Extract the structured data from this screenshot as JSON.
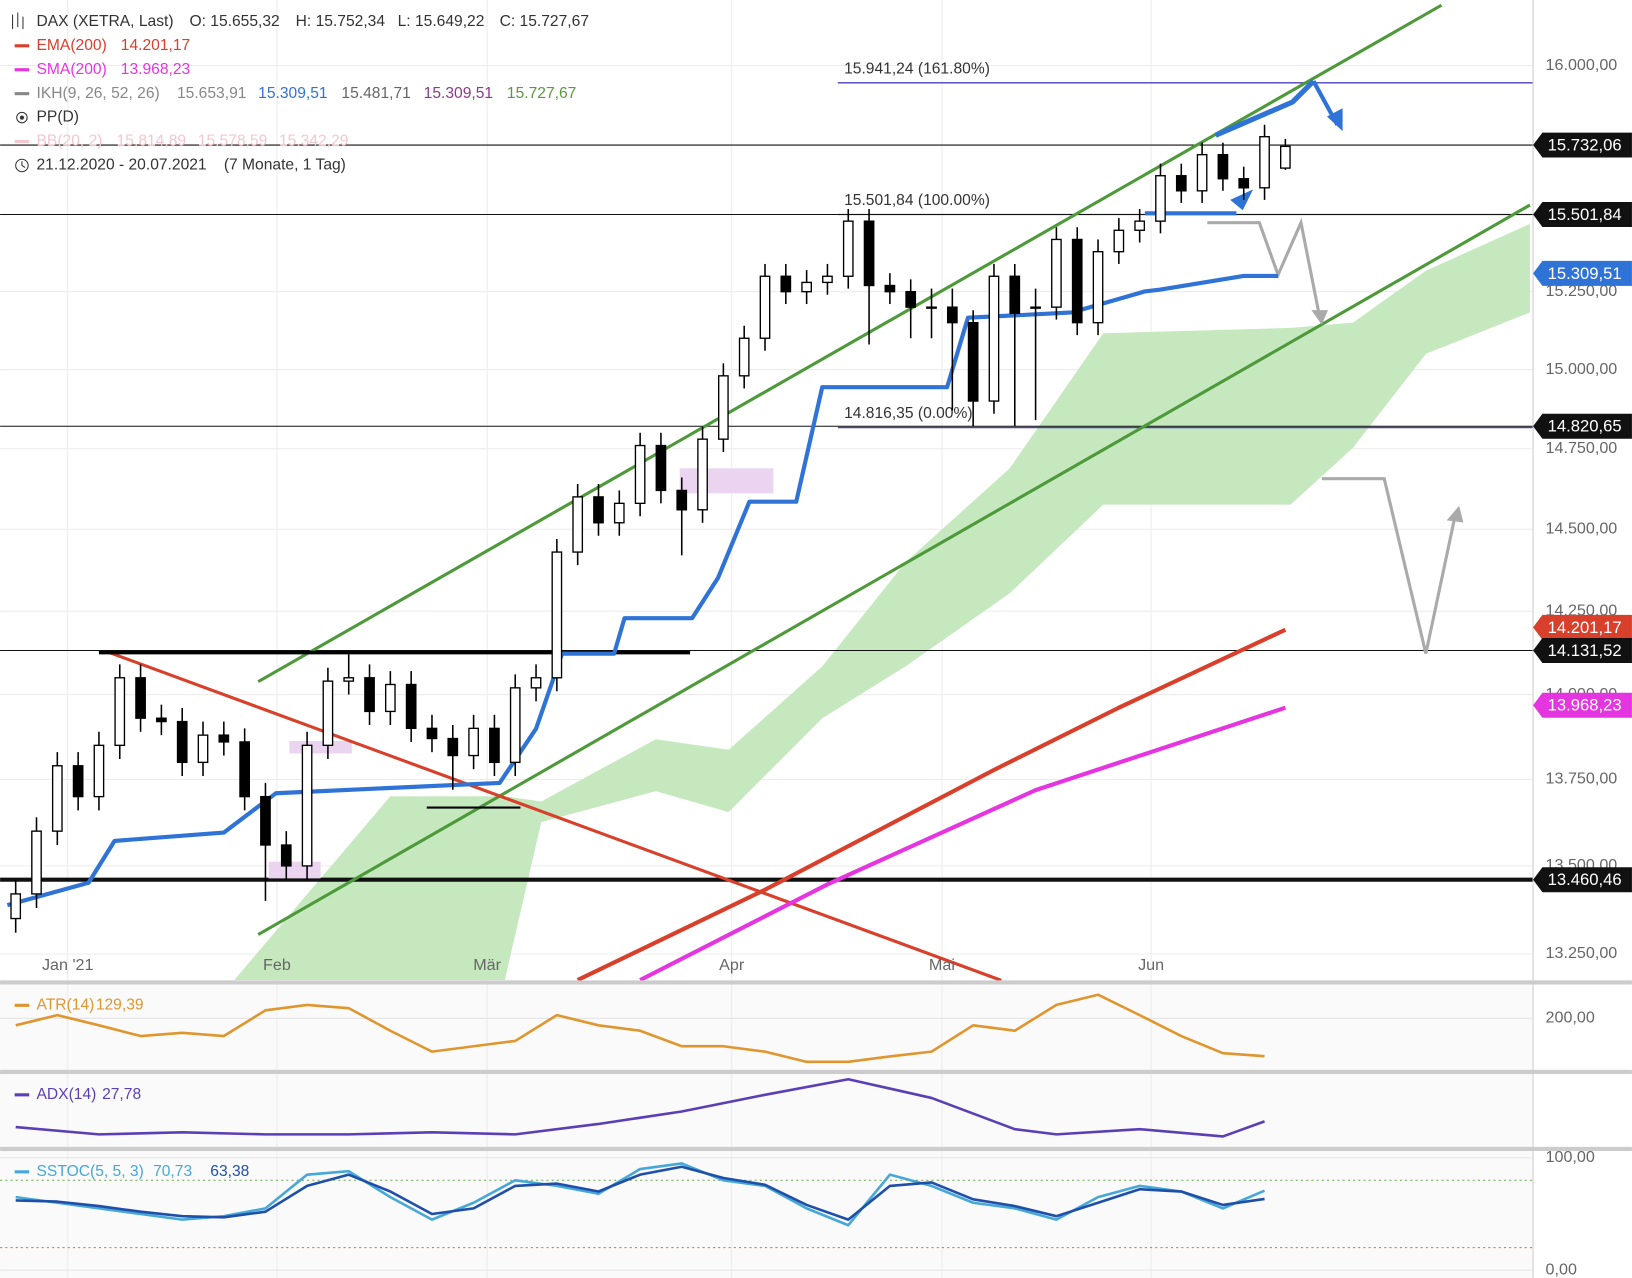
{
  "chart_data": {
    "type": "candlestick",
    "title": "DAX (XETRA, Last)",
    "ohlc_labels": [
      "O: 15.655,32",
      "H: 15.752,34",
      "L: 15.649,22",
      "C: 15.727,67"
    ],
    "log": true,
    "grid": true,
    "xlim": [
      -0.75,
      72.9
    ],
    "ylim": [
      13176,
      16224
    ],
    "xticks": [
      {
        "value": 2.5,
        "label": "Jan '21"
      },
      {
        "value": 12.55,
        "label": "Feb"
      },
      {
        "value": 22.65,
        "label": "Mär"
      },
      {
        "value": 34.4,
        "label": "Apr"
      },
      {
        "value": 44.5,
        "label": "Mai"
      },
      {
        "value": 54.55,
        "label": "Jun"
      }
    ],
    "yticks": [
      {
        "value": 13250,
        "label": "13.250,00"
      },
      {
        "value": 13500,
        "label": "13.500,00"
      },
      {
        "value": 13750,
        "label": "13.750,00"
      },
      {
        "value": 14000,
        "label": "14.000,00"
      },
      {
        "value": 14250,
        "label": "14.250,00"
      },
      {
        "value": 14500,
        "label": "14.500,00"
      },
      {
        "value": 14750,
        "label": "14.750,00"
      },
      {
        "value": 15000,
        "label": "15.000,00"
      },
      {
        "value": 15250,
        "label": "15.250,00"
      },
      {
        "value": 16000,
        "label": "16.000,00"
      }
    ],
    "candles": [
      [
        13350,
        13460,
        13310,
        13420
      ],
      [
        13420,
        13640,
        13380,
        13600
      ],
      [
        13600,
        13830,
        13560,
        13790
      ],
      [
        13790,
        13830,
        13660,
        13700
      ],
      [
        13700,
        13890,
        13660,
        13850
      ],
      [
        13850,
        14090,
        13810,
        14050
      ],
      [
        14050,
        14090,
        13890,
        13930
      ],
      [
        13930,
        13970,
        13880,
        13920
      ],
      [
        13920,
        13960,
        13760,
        13800
      ],
      [
        13800,
        13920,
        13760,
        13880
      ],
      [
        13880,
        13920,
        13820,
        13860
      ],
      [
        13860,
        13900,
        13660,
        13700
      ],
      [
        13700,
        13740,
        13400,
        13560
      ],
      [
        13560,
        13600,
        13460,
        13500
      ],
      [
        13500,
        13890,
        13460,
        13850
      ],
      [
        13850,
        14080,
        13810,
        14040
      ],
      [
        14040,
        14120,
        14000,
        14050
      ],
      [
        14050,
        14090,
        13910,
        13950
      ],
      [
        13950,
        14070,
        13910,
        14030
      ],
      [
        14030,
        14070,
        13860,
        13900
      ],
      [
        13900,
        13940,
        13830,
        13870
      ],
      [
        13870,
        13910,
        13720,
        13820
      ],
      [
        13820,
        13940,
        13780,
        13900
      ],
      [
        13900,
        13940,
        13760,
        13800
      ],
      [
        13800,
        14060,
        13760,
        14020
      ],
      [
        14020,
        14090,
        13980,
        14050
      ],
      [
        14050,
        14470,
        14010,
        14430
      ],
      [
        14430,
        14640,
        14390,
        14600
      ],
      [
        14600,
        14640,
        14480,
        14520
      ],
      [
        14520,
        14620,
        14480,
        14580
      ],
      [
        14580,
        14800,
        14540,
        14760
      ],
      [
        14760,
        14800,
        14580,
        14620
      ],
      [
        14620,
        14660,
        14420,
        14560
      ],
      [
        14560,
        14820,
        14520,
        14780
      ],
      [
        14780,
        15020,
        14740,
        14980
      ],
      [
        14980,
        15140,
        14940,
        15100
      ],
      [
        15100,
        15340,
        15060,
        15300
      ],
      [
        15300,
        15340,
        15210,
        15250
      ],
      [
        15250,
        15320,
        15210,
        15280
      ],
      [
        15280,
        15340,
        15240,
        15300
      ],
      [
        15300,
        15520,
        15260,
        15480
      ],
      [
        15480,
        15520,
        15080,
        15270
      ],
      [
        15270,
        15310,
        15210,
        15250
      ],
      [
        15250,
        15290,
        15100,
        15200
      ],
      [
        15200,
        15260,
        15100,
        15200
      ],
      [
        15200,
        15260,
        14870,
        15150
      ],
      [
        15150,
        15190,
        14820,
        14900
      ],
      [
        14900,
        15340,
        14860,
        15300
      ],
      [
        15300,
        15340,
        14820,
        15180
      ],
      [
        15200,
        15260,
        14840,
        15200
      ],
      [
        15200,
        15460,
        15160,
        15420
      ],
      [
        15420,
        15460,
        15110,
        15150
      ],
      [
        15150,
        15420,
        15110,
        15380
      ],
      [
        15380,
        15490,
        15340,
        15450
      ],
      [
        15450,
        15520,
        15410,
        15480
      ],
      [
        15480,
        15670,
        15440,
        15630
      ],
      [
        15630,
        15670,
        15540,
        15580
      ],
      [
        15580,
        15740,
        15540,
        15700
      ],
      [
        15700,
        15740,
        15580,
        15620
      ],
      [
        15620,
        15660,
        15550,
        15590
      ],
      [
        15590,
        15800,
        15550,
        15760
      ],
      [
        15655.32,
        15752.34,
        15649.22,
        15727.67
      ]
    ],
    "series": [
      {
        "name": "EMA(200)",
        "legend_value": "14.201,17",
        "color": "#d9402b",
        "x": [
          27,
          36,
          47,
          53,
          61
        ],
        "values": [
          13177,
          13432,
          13778,
          13961,
          14194
        ]
      },
      {
        "name": "SMA(200)",
        "legend_value": "13.968,23",
        "color": "#e535e0",
        "x": [
          30,
          39,
          49,
          61
        ],
        "values": [
          13177,
          13447,
          13719,
          13961
        ]
      },
      {
        "name": "IKH(9, 26, 52, 26)",
        "legend_values": [
          "15.653,91",
          "15.309,51",
          "15.481,71",
          "15.309,51",
          "15.727,67"
        ],
        "color": "#2f73d6",
        "x": [
          -0.4,
          3.5,
          4.75,
          10,
          12.5,
          23.25,
          25,
          26.25,
          28.75,
          29.25,
          32.5,
          33.75,
          35.25,
          37.5,
          38.75,
          44.75,
          45.75,
          50.75,
          54.25,
          55,
          59,
          60.65
        ],
        "values": [
          13388,
          13452,
          13572,
          13596,
          13710,
          13740,
          13899,
          14122,
          14122,
          14229,
          14229,
          14352,
          14585,
          14585,
          14944,
          14944,
          15166,
          15183,
          15251,
          15257,
          15301,
          15301
        ],
        "cloud": {
          "color": "#c6e8bf",
          "x": [
            10.5,
            18,
            23.5,
            25.25,
            30.75,
            34.25,
            38.75,
            42.75,
            47.75,
            52.25,
            61.25,
            64.25,
            67.75,
            72.75
          ],
          "upper": [
            13177,
            13701,
            13701,
            13686,
            13868,
            13837,
            14084,
            14399,
            14688,
            15116,
            15133,
            15150,
            15318,
            15471
          ],
          "lower": [
            13177,
            13177,
            13177,
            13626,
            13716,
            13655,
            13930,
            14084,
            14304,
            14576,
            14576,
            14753,
            15050,
            15183
          ]
        }
      }
    ],
    "pp": "PP(D)",
    "bb": {
      "name": "BB(20, 2)",
      "legend_values": [
        "15.814,89",
        "15.578,59",
        "15.342,29"
      ]
    },
    "range": "21.12.2020 - 20.07.2021",
    "range_note": "(7 Monate, 1 Tag)",
    "fib": [
      {
        "value": 15941.24,
        "label": "15.941,24 (161.80%)"
      },
      {
        "value": 15501.84,
        "label": "15.501,84 (100.00%)"
      },
      {
        "value": 14816.35,
        "label": "14.816,35 (0.00%)"
      }
    ],
    "fib_color": "#4b3fbf",
    "price_tags": [
      {
        "value": 15732.06,
        "label": "15.732,06",
        "color": "#111111",
        "line_width": 1
      },
      {
        "value": 15501.84,
        "label": "15.501,84",
        "color": "#111111",
        "line_width": 1
      },
      {
        "value": 15309.51,
        "label": "15.309,51",
        "color": "#2f73d6"
      },
      {
        "value": 14820.65,
        "label": "14.820,65",
        "color": "#111111",
        "line_width": 1
      },
      {
        "value": 14201.17,
        "label": "14.201,17",
        "color": "#d9402b"
      },
      {
        "value": 14131.52,
        "label": "14.131,52",
        "color": "#111111",
        "line_width": 1
      },
      {
        "value": 13968.23,
        "label": "13.968,23",
        "color": "#e535e0"
      },
      {
        "value": 13460.46,
        "label": "13.460,46",
        "color": "#111111",
        "line_width": 4
      }
    ],
    "indicators": [
      {
        "name": "ATR(14)",
        "ylim": [
          104,
          263
        ],
        "yticks": [
          {
            "value": 200,
            "label": "200,00"
          }
        ],
        "series": [
          {
            "legend_value": "129,39",
            "color": "#e0962e",
            "x": [
              0,
              2,
              4,
              6,
              8,
              10,
              12,
              14,
              16,
              18,
              20,
              22,
              24,
              26,
              28,
              30,
              32,
              34,
              36,
              38,
              40,
              42,
              44,
              46,
              48,
              50,
              52,
              54,
              56,
              58,
              60
            ],
            "values": [
              187,
              206,
              187,
              167,
              173,
              167,
              215,
              225,
              219,
              177,
              138,
              148,
              158,
              206,
              187,
              177,
              148,
              148,
              138,
              119,
              119,
              129,
              138,
              187,
              177,
              225,
              244,
              206,
              167,
              135,
              129.39
            ]
          }
        ]
      },
      {
        "name": "ADX(14)",
        "ylim": [
          18,
          46
        ],
        "yticks": [],
        "series": [
          {
            "legend_value": "27,78",
            "color": "#5b3fb5",
            "x": [
              0,
              4,
              8,
              12,
              16,
              20,
              24,
              28,
              32,
              36,
              40,
              44,
              48,
              50,
              54,
              58,
              60
            ],
            "values": [
              25.6,
              22.8,
              23.6,
              22.8,
              22.8,
              23.6,
              22.8,
              26.8,
              31.6,
              38,
              44,
              36.8,
              24.8,
              22.8,
              24.8,
              22,
              27.78
            ]
          }
        ]
      },
      {
        "name": "SSTOC(5, 5, 3)",
        "ylim": [
          -7,
          106
        ],
        "yticks": [
          {
            "value": 100,
            "label": "100,00"
          },
          {
            "value": 0,
            "label": "0,00"
          }
        ],
        "levels": [
          80,
          20
        ],
        "series": [
          {
            "legend_value": "70,73",
            "color": "#45a8d8",
            "x": [
              0,
              2,
              4,
              6,
              8,
              10,
              12,
              14,
              16,
              18,
              20,
              22,
              24,
              26,
              28,
              30,
              32,
              34,
              36,
              38,
              40,
              42,
              44,
              46,
              48,
              50,
              52,
              54,
              56,
              58,
              60
            ],
            "values": [
              65,
              60,
              55,
              50,
              45,
              48,
              55,
              85,
              88,
              65,
              45,
              60,
              80,
              75,
              68,
              90,
              95,
              80,
              75,
              55,
              40,
              85,
              75,
              60,
              55,
              45,
              65,
              75,
              70,
              55,
              70.73
            ]
          },
          {
            "legend_value": "63,38",
            "color": "#1f4fa8",
            "x": [
              0,
              2,
              4,
              6,
              8,
              10,
              12,
              14,
              16,
              18,
              20,
              22,
              24,
              26,
              28,
              30,
              32,
              34,
              36,
              38,
              40,
              42,
              44,
              46,
              48,
              50,
              52,
              54,
              56,
              58,
              60
            ],
            "values": [
              62,
              61,
              57,
              52,
              48,
              47,
              52,
              75,
              85,
              70,
              50,
              55,
              75,
              77,
              70,
              85,
              92,
              82,
              76,
              58,
              45,
              75,
              78,
              63,
              57,
              48,
              60,
              72,
              70,
              58,
              63.38
            ]
          }
        ]
      }
    ]
  }
}
